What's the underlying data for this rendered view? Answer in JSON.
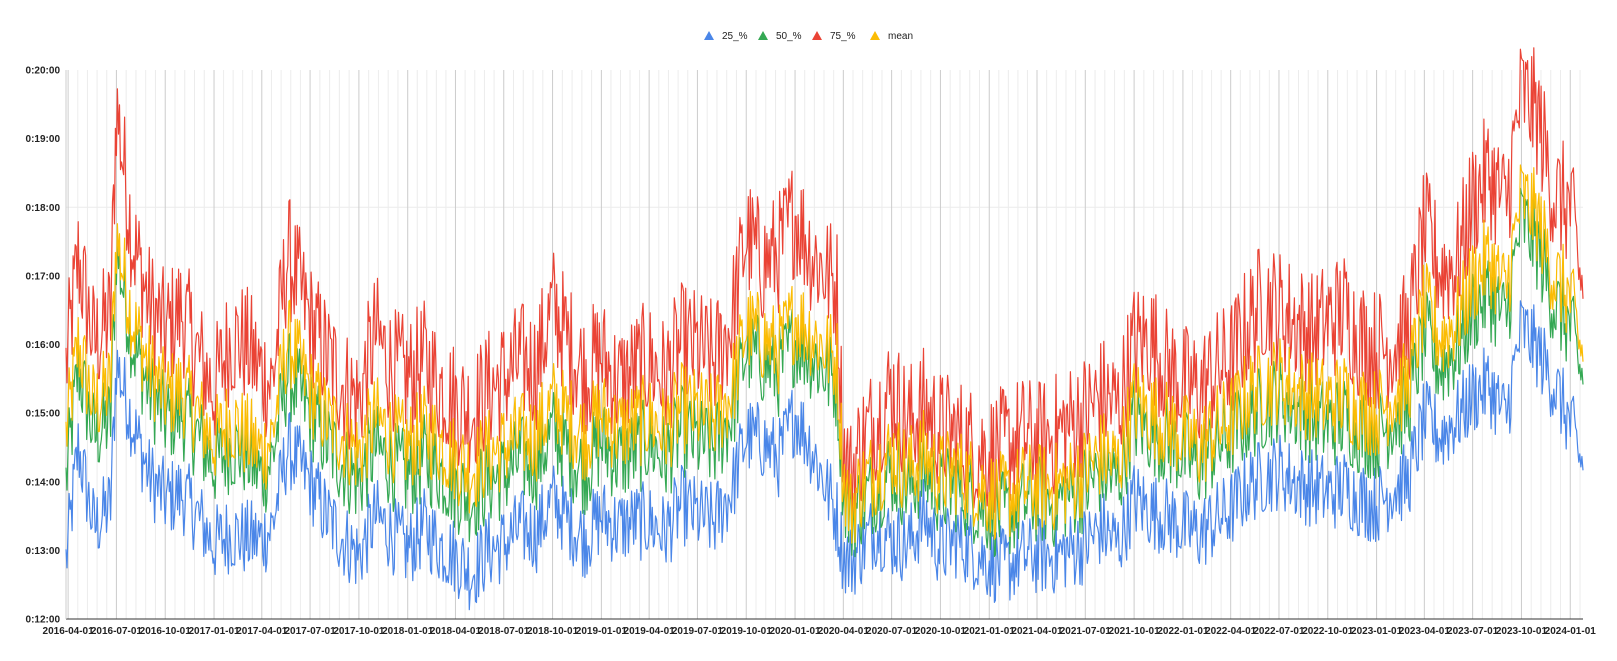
{
  "chart_data": {
    "type": "line",
    "title": "",
    "xlabel": "",
    "ylabel": "",
    "legend_position": "top",
    "grid": true,
    "ylim": [
      "0:12:00",
      "0:20:00"
    ],
    "y_ticks": [
      "0:12:00",
      "0:13:00",
      "0:14:00",
      "0:15:00",
      "0:16:00",
      "0:17:00",
      "0:18:00",
      "0:19:00",
      "0:20:00"
    ],
    "x_ticks": [
      "2016-04-01",
      "2016-07-01",
      "2016-10-01",
      "2017-01-01",
      "2017-04-01",
      "2017-07-01",
      "2017-10-01",
      "2018-01-01",
      "2018-04-01",
      "2018-07-01",
      "2018-10-01",
      "2019-01-01",
      "2019-04-01",
      "2019-07-01",
      "2019-10-01",
      "2020-01-01",
      "2020-04-01",
      "2020-07-01",
      "2020-10-01",
      "2021-01-01",
      "2021-04-01",
      "2021-07-01",
      "2021-10-01",
      "2022-01-01",
      "2022-04-01",
      "2022-07-01",
      "2022-10-01",
      "2023-01-01",
      "2023-04-01",
      "2023-07-01",
      "2023-10-01",
      "2024-01-01"
    ],
    "x": [
      "2016-03-28",
      "2016-04-20",
      "2016-05-20",
      "2016-06-20",
      "2016-07-01",
      "2016-08-01",
      "2016-09-01",
      "2016-10-01",
      "2016-11-01",
      "2016-12-01",
      "2017-01-01",
      "2017-02-01",
      "2017-03-01",
      "2017-04-01",
      "2017-04-20",
      "2017-05-20",
      "2017-07-01",
      "2017-08-01",
      "2017-09-01",
      "2017-10-01",
      "2017-11-01",
      "2017-12-01",
      "2018-01-01",
      "2018-02-01",
      "2018-03-01",
      "2018-04-01",
      "2018-05-01",
      "2018-06-01",
      "2018-07-01",
      "2018-08-01",
      "2018-09-01",
      "2018-10-01",
      "2018-11-01",
      "2018-12-01",
      "2019-01-01",
      "2019-02-01",
      "2019-03-01",
      "2019-04-01",
      "2019-05-01",
      "2019-06-01",
      "2019-07-01",
      "2019-08-01",
      "2019-09-01",
      "2019-10-01",
      "2019-11-01",
      "2019-12-01",
      "2020-01-01",
      "2020-02-01",
      "2020-03-20",
      "2020-04-01",
      "2020-04-15",
      "2020-05-01",
      "2020-06-01",
      "2020-07-01",
      "2020-08-01",
      "2020-09-01",
      "2020-10-01",
      "2020-11-01",
      "2020-12-01",
      "2021-01-01",
      "2021-02-01",
      "2021-03-01",
      "2021-04-01",
      "2021-05-01",
      "2021-06-01",
      "2021-07-01",
      "2021-08-01",
      "2021-09-01",
      "2021-10-01",
      "2021-11-01",
      "2021-12-01",
      "2022-01-01",
      "2022-02-01",
      "2022-03-01",
      "2022-04-01",
      "2022-05-01",
      "2022-06-01",
      "2022-07-01",
      "2022-08-01",
      "2022-09-01",
      "2022-10-01",
      "2022-11-01",
      "2022-12-01",
      "2023-01-01",
      "2023-02-01",
      "2023-03-01",
      "2023-04-01",
      "2023-05-01",
      "2023-06-01",
      "2023-07-01",
      "2023-08-01",
      "2023-09-01",
      "2023-10-01",
      "2023-11-01",
      "2023-12-01",
      "2024-01-01",
      "2024-01-25"
    ],
    "series": [
      {
        "name": "25_%",
        "color": "#4a86e8",
        "values": [
          "0:12:50",
          "0:14:30",
          "0:13:20",
          "0:13:40",
          "0:15:45",
          "0:14:50",
          "0:14:05",
          "0:13:45",
          "0:13:50",
          "0:13:30",
          "0:13:05",
          "0:13:15",
          "0:13:10",
          "0:13:10",
          "0:13:20",
          "0:14:30",
          "0:14:00",
          "0:13:30",
          "0:13:10",
          "0:12:55",
          "0:13:30",
          "0:13:15",
          "0:13:00",
          "0:13:20",
          "0:13:05",
          "0:12:55",
          "0:12:40",
          "0:13:00",
          "0:13:05",
          "0:13:20",
          "0:13:15",
          "0:13:45",
          "0:13:25",
          "0:13:10",
          "0:13:30",
          "0:13:20",
          "0:13:25",
          "0:13:25",
          "0:13:15",
          "0:13:40",
          "0:13:30",
          "0:13:25",
          "0:13:50",
          "0:14:40",
          "0:14:35",
          "0:14:20",
          "0:15:00",
          "0:14:30",
          "0:13:30",
          "0:12:55",
          "0:12:50",
          "0:13:00",
          "0:13:20",
          "0:13:10",
          "0:13:05",
          "0:13:30",
          "0:13:00",
          "0:13:10",
          "0:13:00",
          "0:12:50",
          "0:12:45",
          "0:12:55",
          "0:12:55",
          "0:12:55",
          "0:13:00",
          "0:13:05",
          "0:13:20",
          "0:13:05",
          "0:13:45",
          "0:13:35",
          "0:13:30",
          "0:13:20",
          "0:13:15",
          "0:13:25",
          "0:13:35",
          "0:13:55",
          "0:14:05",
          "0:14:10",
          "0:14:00",
          "0:13:55",
          "0:13:50",
          "0:13:55",
          "0:13:45",
          "0:13:40",
          "0:13:55",
          "0:14:00",
          "0:14:55",
          "0:14:40",
          "0:14:55",
          "0:15:15",
          "0:15:25",
          "0:14:55",
          "0:16:15",
          "0:15:55",
          "0:15:25",
          "0:14:50",
          "0:14:10"
        ]
      },
      {
        "name": "50_%",
        "color": "#34a853",
        "values": [
          "0:14:00",
          "0:15:40",
          "0:14:40",
          "0:14:55",
          "0:17:25",
          "0:16:00",
          "0:15:20",
          "0:14:55",
          "0:15:00",
          "0:14:40",
          "0:14:15",
          "0:14:30",
          "0:14:25",
          "0:14:05",
          "0:14:20",
          "0:15:35",
          "0:15:00",
          "0:14:35",
          "0:14:15",
          "0:14:00",
          "0:14:30",
          "0:14:15",
          "0:14:05",
          "0:14:20",
          "0:14:10",
          "0:13:55",
          "0:13:45",
          "0:14:00",
          "0:14:05",
          "0:14:20",
          "0:14:15",
          "0:14:45",
          "0:14:25",
          "0:14:10",
          "0:14:35",
          "0:14:20",
          "0:14:25",
          "0:14:35",
          "0:14:20",
          "0:14:45",
          "0:14:35",
          "0:14:30",
          "0:14:55",
          "0:15:55",
          "0:15:45",
          "0:15:35",
          "0:16:05",
          "0:15:50",
          "0:15:25",
          "0:13:55",
          "0:13:25",
          "0:13:40",
          "0:13:55",
          "0:14:10",
          "0:13:55",
          "0:14:10",
          "0:13:50",
          "0:13:55",
          "0:13:45",
          "0:13:35",
          "0:13:30",
          "0:13:40",
          "0:13:45",
          "0:13:40",
          "0:13:50",
          "0:13:55",
          "0:14:10",
          "0:14:00",
          "0:14:55",
          "0:14:45",
          "0:14:35",
          "0:14:25",
          "0:14:15",
          "0:14:30",
          "0:14:40",
          "0:14:55",
          "0:15:05",
          "0:15:15",
          "0:15:05",
          "0:14:55",
          "0:14:50",
          "0:14:55",
          "0:14:45",
          "0:14:40",
          "0:14:55",
          "0:15:05",
          "0:16:10",
          "0:15:40",
          "0:15:55",
          "0:16:30",
          "0:16:45",
          "0:16:20",
          "0:17:50",
          "0:17:25",
          "0:16:35",
          "0:16:15",
          "0:15:25"
        ]
      },
      {
        "name": "75_%",
        "color": "#ea4335",
        "values": [
          "0:15:40",
          "0:17:15",
          "0:16:00",
          "0:16:25",
          "0:19:30",
          "0:17:30",
          "0:16:35",
          "0:16:10",
          "0:16:30",
          "0:15:50",
          "0:15:20",
          "0:16:05",
          "0:16:00",
          "0:15:35",
          "0:15:25",
          "0:17:20",
          "0:16:20",
          "0:15:50",
          "0:15:25",
          "0:15:10",
          "0:16:10",
          "0:15:40",
          "0:15:30",
          "0:15:45",
          "0:15:25",
          "0:15:10",
          "0:15:00",
          "0:15:20",
          "0:15:30",
          "0:15:45",
          "0:15:40",
          "0:16:35",
          "0:16:00",
          "0:15:35",
          "0:15:50",
          "0:15:25",
          "0:15:35",
          "0:15:45",
          "0:15:30",
          "0:16:00",
          "0:15:55",
          "0:15:45",
          "0:16:15",
          "0:17:35",
          "0:17:10",
          "0:17:20",
          "0:17:55",
          "0:17:20",
          "0:16:50",
          "0:14:30",
          "0:14:05",
          "0:14:30",
          "0:14:55",
          "0:15:20",
          "0:14:50",
          "0:15:05",
          "0:14:45",
          "0:14:40",
          "0:14:30",
          "0:14:25",
          "0:14:30",
          "0:14:40",
          "0:14:35",
          "0:14:40",
          "0:14:50",
          "0:15:00",
          "0:15:15",
          "0:15:05",
          "0:16:00",
          "0:16:05",
          "0:15:40",
          "0:15:25",
          "0:15:20",
          "0:15:35",
          "0:15:45",
          "0:16:15",
          "0:16:40",
          "0:16:30",
          "0:16:20",
          "0:16:10",
          "0:16:20",
          "0:16:30",
          "0:16:05",
          "0:15:55",
          "0:16:00",
          "0:16:10",
          "0:17:40",
          "0:17:05",
          "0:17:10",
          "0:18:05",
          "0:18:30",
          "0:18:00",
          "0:19:40",
          "0:19:20",
          "0:18:10",
          "0:18:00",
          "0:16:40"
        ]
      },
      {
        "name": "mean",
        "color": "#fbbc04",
        "values": [
          "0:14:40",
          "0:16:00",
          "0:15:05",
          "0:15:25",
          "0:17:35",
          "0:16:20",
          "0:15:40",
          "0:15:15",
          "0:15:20",
          "0:15:00",
          "0:14:35",
          "0:14:55",
          "0:14:40",
          "0:14:25",
          "0:14:40",
          "0:16:05",
          "0:15:20",
          "0:14:55",
          "0:14:40",
          "0:14:25",
          "0:14:55",
          "0:14:40",
          "0:14:30",
          "0:14:45",
          "0:14:35",
          "0:14:20",
          "0:14:10",
          "0:14:25",
          "0:14:30",
          "0:14:40",
          "0:14:40",
          "0:15:10",
          "0:14:55",
          "0:14:40",
          "0:15:00",
          "0:14:45",
          "0:14:50",
          "0:14:55",
          "0:14:45",
          "0:15:05",
          "0:15:00",
          "0:14:55",
          "0:15:15",
          "0:16:15",
          "0:16:05",
          "0:15:55",
          "0:16:25",
          "0:16:10",
          "0:15:45",
          "0:14:05",
          "0:13:35",
          "0:13:55",
          "0:14:10",
          "0:14:25",
          "0:14:10",
          "0:14:25",
          "0:14:05",
          "0:14:10",
          "0:14:00",
          "0:13:50",
          "0:13:45",
          "0:13:55",
          "0:13:55",
          "0:13:55",
          "0:14:00",
          "0:14:10",
          "0:14:25",
          "0:14:15",
          "0:15:10",
          "0:15:00",
          "0:14:50",
          "0:14:40",
          "0:14:30",
          "0:14:45",
          "0:14:55",
          "0:15:15",
          "0:15:25",
          "0:15:30",
          "0:15:20",
          "0:15:15",
          "0:15:10",
          "0:15:15",
          "0:15:05",
          "0:15:00",
          "0:15:15",
          "0:15:25",
          "0:16:35",
          "0:16:05",
          "0:16:20",
          "0:16:55",
          "0:17:15",
          "0:16:45",
          "0:18:10",
          "0:17:50",
          "0:17:00",
          "0:16:40",
          "0:15:45"
        ]
      }
    ]
  }
}
